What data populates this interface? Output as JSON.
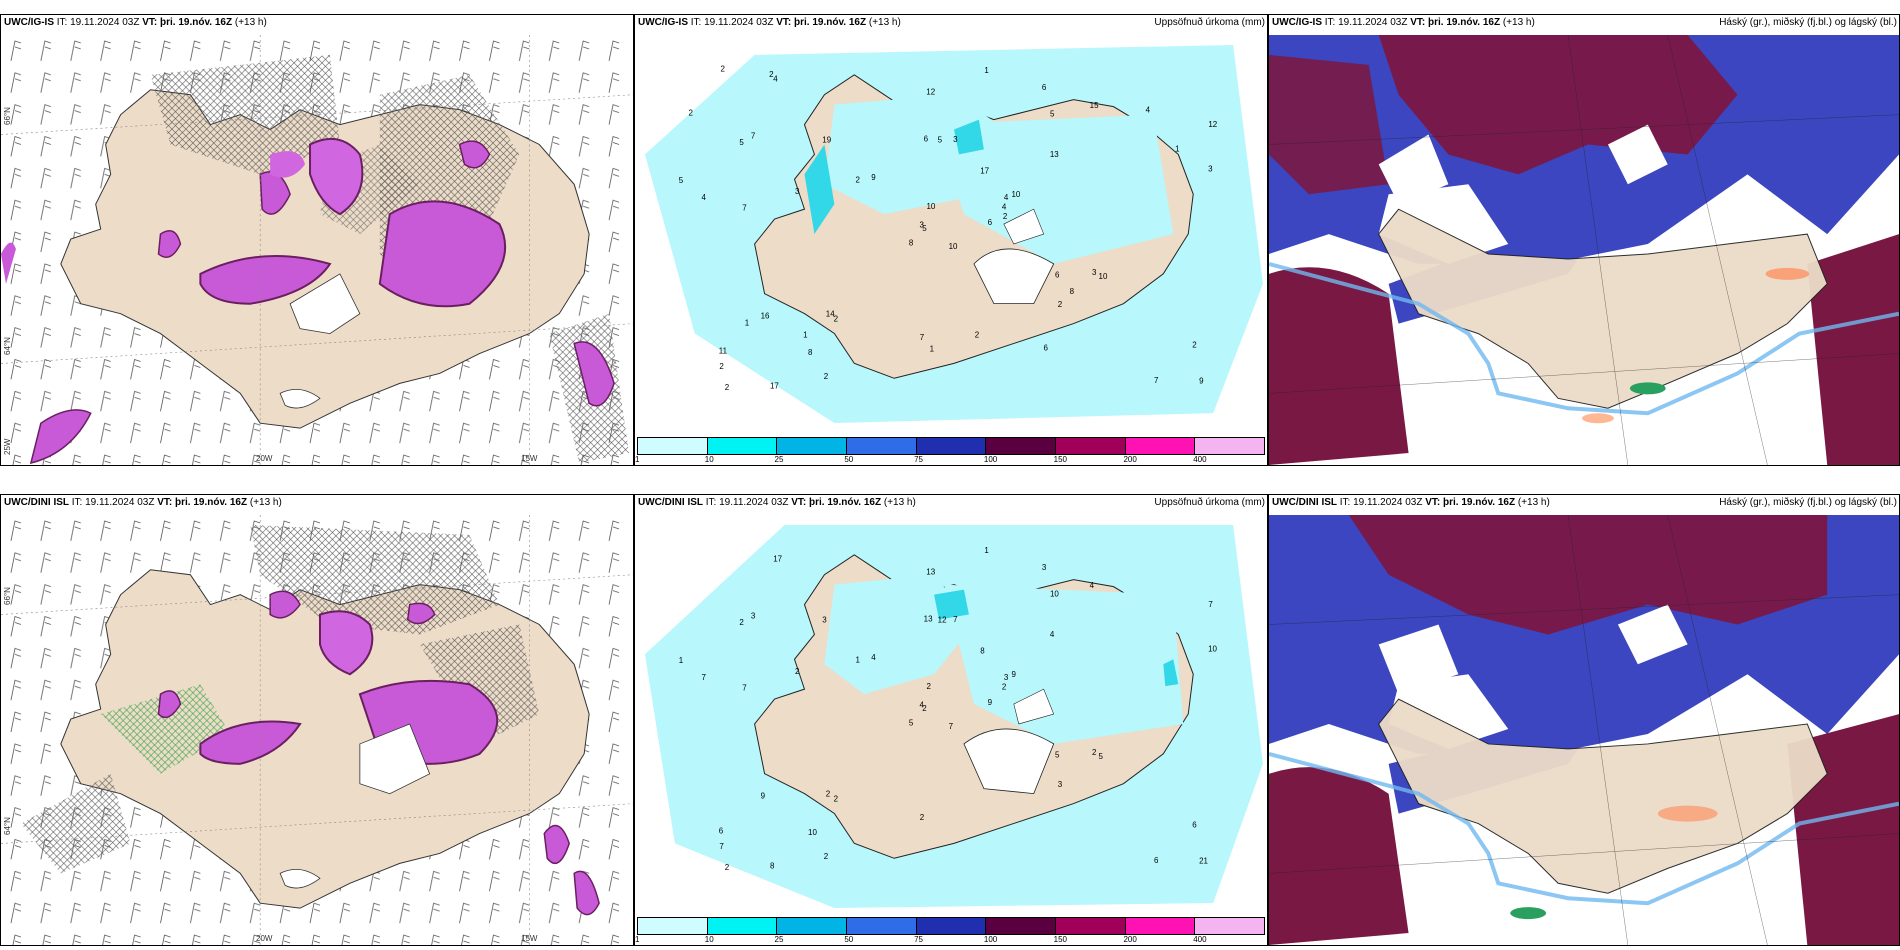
{
  "panels": {
    "top": {
      "p1": {
        "model": "UWC/IG-IS",
        "it_label": "IT:",
        "it_value": "19.11.2024 03Z",
        "vt_label": "VT:",
        "vt_value": "þri. 19.nóv. 16Z",
        "lead": "(+13 h)"
      },
      "p2": {
        "model": "UWC/IG-IS",
        "it_label": "IT:",
        "it_value": "19.11.2024 03Z",
        "vt_label": "VT:",
        "vt_value": "þri. 19.nóv. 16Z",
        "lead": "(+13 h)",
        "right_title": "Uppsöfnuð úrkoma (mm)"
      },
      "p3": {
        "model": "UWC/IG-IS",
        "it_label": "IT:",
        "it_value": "19.11.2024 03Z",
        "vt_label": "VT:",
        "vt_value": "þri. 19.nóv. 16Z",
        "lead": "(+13 h)",
        "right_title": "Háský (gr.), miðský (fj.bl.) og lágský (bl.)"
      }
    },
    "bottom": {
      "p1": {
        "model": "UWC/DINI ISL",
        "it_label": "IT:",
        "it_value": "19.11.2024 03Z",
        "vt_label": "VT:",
        "vt_value": "þri. 19.nóv. 16Z",
        "lead": "(+13 h)"
      },
      "p2": {
        "model": "UWC/DINI ISL",
        "it_label": "IT:",
        "it_value": "19.11.2024 03Z",
        "vt_label": "VT:",
        "vt_value": "þri. 19.nóv. 16Z",
        "lead": "(+13 h)",
        "right_title": "Uppsöfnuð úrkoma (mm)"
      },
      "p3": {
        "model": "UWC/DINI ISL",
        "it_label": "IT:",
        "it_value": "19.11.2024 03Z",
        "vt_label": "VT:",
        "vt_value": "þri. 19.nóv. 16Z",
        "lead": "(+13 h)",
        "right_title": "Háský (gr.), miðský (fj.bl.) og lágský (bl.)"
      }
    }
  },
  "axis_labels": {
    "lat_66": "66°N",
    "lat_64": "64°N",
    "lon_25": "25W",
    "lon_20": "20W",
    "lon_15": "15W"
  },
  "colorbar": {
    "labels": [
      "1",
      "10",
      "25",
      "50",
      "75",
      "100",
      "150",
      "200",
      "400"
    ],
    "colors": [
      "#cffcff",
      "#00f2f2",
      "#00b4e6",
      "#2f6ce8",
      "#1f2fb0",
      "#5a0040",
      "#a0005a",
      "#ff12b4",
      "#f4b4f0"
    ]
  },
  "precip_values_top": [
    "10",
    "5",
    "5",
    "11",
    "4",
    "2",
    "6",
    "3",
    "5",
    "6",
    "4",
    "9",
    "7",
    "12",
    "8",
    "13",
    "17",
    "6",
    "17",
    "16",
    "9",
    "2",
    "8",
    "5",
    "10",
    "10",
    "7",
    "12",
    "4",
    "6",
    "3",
    "3",
    "7",
    "10",
    "19",
    "15",
    "14",
    "7",
    "2",
    "3",
    "1",
    "2",
    "3",
    "2",
    "2",
    "5",
    "4",
    "2",
    "1",
    "2",
    "1",
    "1",
    "2",
    "8",
    "6",
    "1",
    "2",
    "2",
    "2",
    "4"
  ],
  "precip_values_bottom": [
    "7",
    "2",
    "2",
    "6",
    "3",
    "2",
    "3",
    "7",
    "10",
    "9",
    "17",
    "21",
    "7",
    "7",
    "5",
    "4",
    "8",
    "13",
    "8",
    "9",
    "4",
    "7",
    "10",
    "12",
    "9",
    "5",
    "3",
    "13",
    "7",
    "5",
    "10",
    "4",
    "2",
    "2",
    "3",
    "4",
    "2",
    "6",
    "6",
    "2",
    "1",
    "1",
    "2",
    "3",
    "2",
    "1",
    "2",
    "2"
  ],
  "map_colors": {
    "land": "#ecdcc8",
    "light_precip": "#b8f7fb",
    "cloud_dark": "#7a1844",
    "cloud_mid": "#3b46c0",
    "cloud_light": "#6fb8f0",
    "magenta": "#d060e0"
  }
}
